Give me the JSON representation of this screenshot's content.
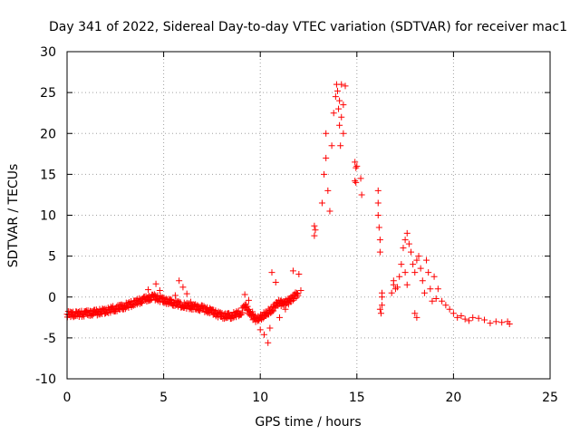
{
  "chart_data": {
    "type": "scatter",
    "title": "Day 341 of 2022, Sidereal Day-to-day VTEC variation (SDTVAR) for receiver mac1",
    "xlabel": "GPS time / hours",
    "ylabel": "SDTVAR / TECUs",
    "xlim": [
      0,
      25
    ],
    "ylim": [
      -10,
      30
    ],
    "xticks": [
      0,
      5,
      10,
      15,
      20,
      25
    ],
    "xtick_labels": [
      "0",
      "5",
      "10",
      "15",
      "20",
      "25"
    ],
    "yticks": [
      -10,
      -5,
      0,
      5,
      10,
      15,
      20,
      25,
      30
    ],
    "ytick_labels": [
      "-10",
      "-5",
      "0",
      "5",
      "10",
      "15",
      "20",
      "25",
      "30"
    ],
    "grid": true,
    "marker": "+",
    "color": "#ff0000",
    "series": [
      {
        "name": "mac1",
        "trend": [
          [
            0.0,
            -2.1
          ],
          [
            0.5,
            -2.1
          ],
          [
            1.0,
            -2.0
          ],
          [
            1.5,
            -1.9
          ],
          [
            2.0,
            -1.7
          ],
          [
            2.5,
            -1.4
          ],
          [
            3.0,
            -1.1
          ],
          [
            3.5,
            -0.7
          ],
          [
            4.0,
            -0.3
          ],
          [
            4.5,
            0.0
          ],
          [
            5.0,
            -0.4
          ],
          [
            5.5,
            -0.7
          ],
          [
            6.0,
            -1.0
          ],
          [
            6.5,
            -1.2
          ],
          [
            7.0,
            -1.4
          ],
          [
            7.5,
            -1.8
          ],
          [
            8.0,
            -2.3
          ],
          [
            8.5,
            -2.3
          ],
          [
            9.0,
            -1.9
          ],
          [
            9.2,
            -1.0
          ],
          [
            9.5,
            -2.2
          ],
          [
            9.8,
            -2.8
          ],
          [
            10.0,
            -2.5
          ],
          [
            10.3,
            -2.0
          ],
          [
            10.6,
            -1.5
          ],
          [
            10.9,
            -0.7
          ],
          [
            11.2,
            -0.8
          ],
          [
            11.5,
            -0.5
          ],
          [
            11.8,
            0.2
          ],
          [
            12.0,
            0.5
          ]
        ],
        "points": [
          [
            4.6,
            1.6
          ],
          [
            4.8,
            0.8
          ],
          [
            4.2,
            0.9
          ],
          [
            5.4,
            -0.4
          ],
          [
            5.6,
            0.2
          ],
          [
            5.8,
            2.0
          ],
          [
            6.0,
            1.2
          ],
          [
            6.2,
            0.4
          ],
          [
            6.4,
            -0.6
          ],
          [
            6.6,
            -1.0
          ],
          [
            9.2,
            0.3
          ],
          [
            9.4,
            -0.4
          ],
          [
            9.6,
            -1.8
          ],
          [
            10.0,
            -4.0
          ],
          [
            10.2,
            -4.6
          ],
          [
            10.4,
            -5.6
          ],
          [
            10.5,
            -3.8
          ],
          [
            10.6,
            3.0
          ],
          [
            10.8,
            1.8
          ],
          [
            11.0,
            -2.5
          ],
          [
            11.3,
            -1.5
          ],
          [
            12.0,
            2.8
          ],
          [
            12.1,
            0.8
          ],
          [
            11.7,
            3.2
          ],
          [
            12.8,
            8.7
          ],
          [
            12.8,
            7.5
          ],
          [
            12.85,
            8.2
          ],
          [
            13.2,
            11.5
          ],
          [
            13.3,
            15.0
          ],
          [
            13.4,
            17.0
          ],
          [
            13.4,
            20.0
          ],
          [
            13.5,
            13.0
          ],
          [
            13.6,
            10.5
          ],
          [
            13.7,
            18.5
          ],
          [
            13.8,
            22.5
          ],
          [
            13.9,
            24.5
          ],
          [
            13.95,
            26.0
          ],
          [
            14.0,
            25.2
          ],
          [
            14.05,
            23.0
          ],
          [
            14.1,
            21.0
          ],
          [
            14.1,
            24.0
          ],
          [
            14.2,
            26.0
          ],
          [
            14.2,
            22.0
          ],
          [
            14.3,
            20.0
          ],
          [
            14.3,
            23.5
          ],
          [
            14.4,
            25.8
          ],
          [
            14.15,
            18.5
          ],
          [
            14.9,
            16.5
          ],
          [
            14.95,
            15.8
          ],
          [
            15.0,
            16.0
          ],
          [
            14.9,
            14.2
          ],
          [
            14.95,
            14.0
          ],
          [
            15.2,
            14.5
          ],
          [
            15.25,
            12.5
          ],
          [
            16.1,
            13.0
          ],
          [
            16.1,
            11.5
          ],
          [
            16.1,
            10.0
          ],
          [
            16.15,
            8.5
          ],
          [
            16.2,
            7.0
          ],
          [
            16.2,
            5.5
          ],
          [
            16.2,
            -1.5
          ],
          [
            16.25,
            -2.0
          ],
          [
            16.3,
            0.5
          ],
          [
            16.3,
            -1.0
          ],
          [
            16.3,
            0.0
          ],
          [
            16.8,
            0.5
          ],
          [
            16.9,
            1.5
          ],
          [
            17.0,
            1.0
          ],
          [
            17.2,
            2.5
          ],
          [
            17.3,
            4.0
          ],
          [
            17.4,
            6.0
          ],
          [
            17.5,
            7.0
          ],
          [
            17.6,
            7.8
          ],
          [
            17.7,
            6.5
          ],
          [
            17.8,
            5.5
          ],
          [
            17.9,
            4.0
          ],
          [
            18.0,
            3.0
          ],
          [
            18.0,
            -2.0
          ],
          [
            18.1,
            -2.5
          ],
          [
            18.2,
            5.0
          ],
          [
            18.3,
            3.5
          ],
          [
            18.4,
            2.0
          ],
          [
            18.5,
            0.5
          ],
          [
            18.6,
            4.5
          ],
          [
            18.7,
            3.0
          ],
          [
            18.8,
            1.0
          ],
          [
            18.9,
            -0.5
          ],
          [
            19.0,
            2.5
          ],
          [
            19.2,
            1.0
          ],
          [
            19.4,
            -0.5
          ],
          [
            19.6,
            -1.0
          ],
          [
            19.8,
            -1.5
          ],
          [
            20.0,
            -2.0
          ],
          [
            20.2,
            -2.5
          ],
          [
            20.4,
            -2.3
          ],
          [
            20.6,
            -2.7
          ],
          [
            20.8,
            -2.9
          ],
          [
            21.0,
            -2.5
          ],
          [
            21.3,
            -2.6
          ],
          [
            21.6,
            -2.8
          ],
          [
            21.9,
            -3.2
          ],
          [
            22.2,
            -3.0
          ],
          [
            22.5,
            -3.1
          ],
          [
            22.8,
            -3.0
          ],
          [
            22.9,
            -3.3
          ],
          [
            17.5,
            3.0
          ],
          [
            17.6,
            1.5
          ],
          [
            18.1,
            4.5
          ],
          [
            19.1,
            -0.2
          ],
          [
            16.9,
            2.0
          ],
          [
            17.1,
            1.2
          ]
        ]
      }
    ]
  }
}
